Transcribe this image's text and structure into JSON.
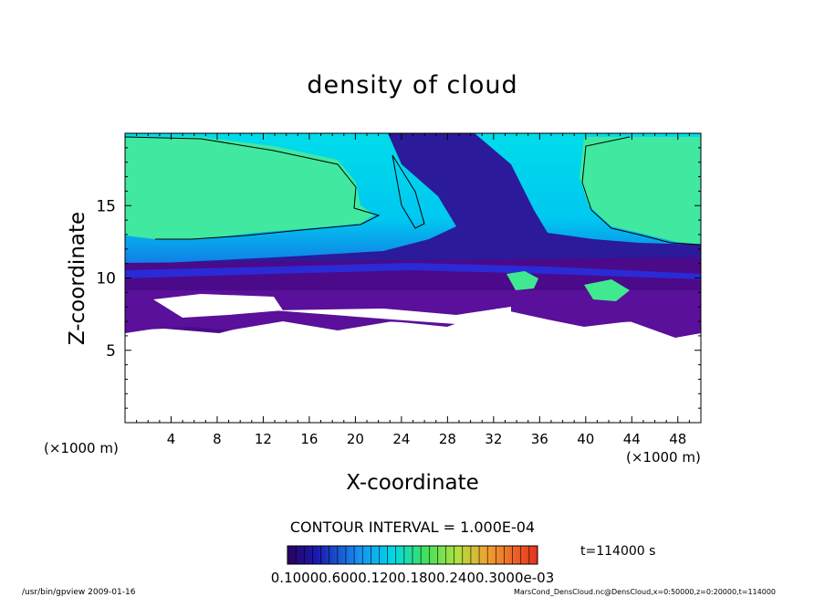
{
  "chart_data": {
    "type": "heatmap",
    "title": "density of cloud",
    "xlabel": "X-coordinate",
    "ylabel": "Z-coordinate",
    "x_unit": "(×1000 m)",
    "y_unit": "(×1000 m)",
    "xlim": [
      0,
      50
    ],
    "ylim": [
      0,
      20
    ],
    "x_ticks": [
      4,
      8,
      12,
      16,
      20,
      24,
      28,
      32,
      36,
      40,
      44,
      48
    ],
    "y_ticks": [
      5,
      10,
      15
    ],
    "contour_interval": "CONTOUR INTERVAL = 1.000E-04",
    "time": "t=114000 s",
    "colorbar_labels": "0.10000.6000.1200.1800.2400.3000e-03",
    "footer_left": "/usr/bin/gpview  2009-01-16",
    "footer_right": "MarsCond_DensCloud.nc@DensCloud,x=0:50000,z=0:20000,t=114000",
    "colors": {
      "low": "#33006b",
      "mid_low": "#1a3cd6",
      "mid": "#00d4f0",
      "high": "#5ce89a"
    }
  }
}
